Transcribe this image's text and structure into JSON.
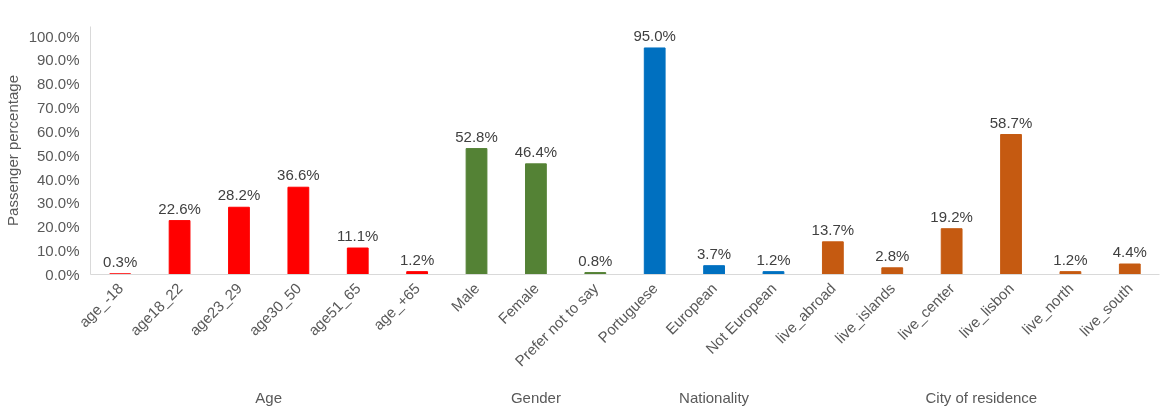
{
  "chart_data": {
    "type": "bar",
    "ylabel": "Passenger percentage",
    "categories": [
      "age_-18",
      "age18_22",
      "age23_29",
      "age30_50",
      "age51_65",
      "age_+65",
      "Male",
      "Female",
      "Prefer not to say",
      "Portuguese",
      "European",
      "Not European",
      "live_abroad",
      "live_islands",
      "live_center",
      "live_lisbon",
      "live_north",
      "live_south"
    ],
    "series": [
      {
        "color": "#ff0000",
        "values": [
          0.3,
          22.6,
          28.2,
          36.6,
          11.1,
          1.2,
          null,
          null,
          null,
          null,
          null,
          null,
          null,
          null,
          null,
          null,
          null,
          null
        ],
        "value_labels": [
          "0.3%",
          "22.6%",
          "28.2%",
          "36.6%",
          "11.1%",
          "1.2%",
          null,
          null,
          null,
          null,
          null,
          null,
          null,
          null,
          null,
          null,
          null,
          null
        ]
      },
      {
        "color": "#548235",
        "values": [
          null,
          null,
          null,
          null,
          null,
          null,
          52.8,
          46.4,
          0.8,
          null,
          null,
          null,
          null,
          null,
          null,
          null,
          null,
          null
        ],
        "value_labels": [
          null,
          null,
          null,
          null,
          null,
          null,
          "52.8%",
          "46.4%",
          "0.8%",
          null,
          null,
          null,
          null,
          null,
          null,
          null,
          null,
          null
        ]
      },
      {
        "color": "#0070c0",
        "values": [
          null,
          null,
          null,
          null,
          null,
          null,
          null,
          null,
          null,
          95.0,
          3.7,
          1.2,
          null,
          null,
          null,
          null,
          null,
          null
        ],
        "value_labels": [
          null,
          null,
          null,
          null,
          null,
          null,
          null,
          null,
          null,
          "95.0%",
          "3.7%",
          "1.2%",
          null,
          null,
          null,
          null,
          null,
          null
        ]
      },
      {
        "color": "#c55a11",
        "values": [
          null,
          null,
          null,
          null,
          null,
          null,
          null,
          null,
          null,
          null,
          null,
          null,
          13.7,
          2.8,
          19.2,
          58.7,
          1.2,
          4.4
        ],
        "value_labels": [
          null,
          null,
          null,
          null,
          null,
          null,
          null,
          null,
          null,
          null,
          null,
          null,
          "13.7%",
          "2.8%",
          "19.2%",
          "58.7%",
          "1.2%",
          "4.4%"
        ]
      }
    ],
    "ylim": [
      0,
      104
    ],
    "yticks": [
      {
        "value": 0,
        "label": "0.0%"
      },
      {
        "value": 10,
        "label": "10.0%"
      },
      {
        "value": 20,
        "label": "20.0%"
      },
      {
        "value": 30,
        "label": "30.0%"
      },
      {
        "value": 40,
        "label": "40.0%"
      },
      {
        "value": 50,
        "label": "50.0%"
      },
      {
        "value": 60,
        "label": "60.0%"
      },
      {
        "value": 70,
        "label": "70.0%"
      },
      {
        "value": 80,
        "label": "80.0%"
      },
      {
        "value": 90,
        "label": "90.0%"
      },
      {
        "value": 100,
        "label": "100.0%"
      }
    ],
    "annotations": [
      "Age",
      "Gender",
      "Nationality",
      "City of residence"
    ],
    "grid": false
  }
}
